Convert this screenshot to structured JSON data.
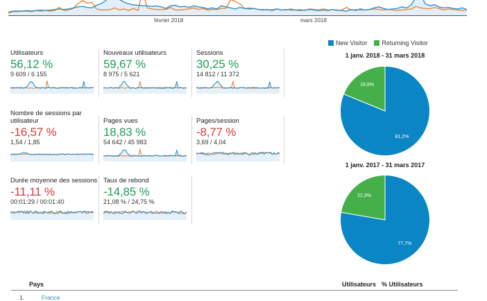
{
  "colors": {
    "new_visitor": "#0a86c4",
    "returning_visitor": "#45b049",
    "series_current": "#2b92c9",
    "series_previous": "#e8873a",
    "positive": "#1e9e58",
    "negative": "#d33b3b"
  },
  "timeline": {
    "x_labels": [
      "février 2018",
      "mars 2018"
    ],
    "series_current": [
      6,
      8,
      8,
      8,
      9,
      8,
      9,
      10,
      9,
      10,
      11,
      12,
      11,
      12,
      14,
      16,
      17,
      15,
      14,
      19,
      22,
      28,
      35,
      40,
      30,
      25,
      22,
      20,
      19,
      18,
      18,
      17,
      18,
      16,
      13,
      18,
      19,
      16,
      17,
      15,
      18,
      16,
      15,
      12,
      14,
      12,
      18,
      16,
      14,
      12,
      15,
      13,
      12,
      13,
      11,
      10,
      11,
      9,
      12,
      10,
      11,
      10,
      10,
      9,
      10,
      11,
      10,
      9,
      10,
      9,
      11,
      10,
      9,
      8,
      11,
      9,
      12,
      10,
      11,
      14,
      16,
      13,
      11,
      12,
      13,
      16,
      14,
      20,
      35,
      40,
      22,
      18,
      20,
      16,
      14,
      15,
      13,
      12,
      14,
      11
    ],
    "series_previous": [
      4,
      7,
      7,
      8,
      8,
      7,
      9,
      8,
      9,
      8,
      9,
      15,
      9,
      10,
      13,
      22,
      28,
      23,
      25,
      12,
      10,
      10,
      11,
      14,
      10,
      12,
      9,
      13,
      9,
      45,
      14,
      12,
      11,
      11,
      11,
      15,
      10,
      10,
      11,
      12,
      14,
      11,
      13,
      10,
      11,
      11,
      13,
      13,
      30,
      26,
      22,
      13,
      14,
      13,
      11,
      11,
      10,
      11,
      12,
      10,
      10,
      12,
      10,
      11,
      9,
      12,
      11,
      10,
      12,
      10,
      11,
      9,
      10,
      15,
      10,
      11,
      10,
      10,
      11,
      12,
      11,
      10,
      11,
      10,
      9,
      10,
      11,
      12,
      17,
      14,
      13,
      12,
      15,
      13,
      10,
      12,
      11,
      10,
      9,
      10
    ]
  },
  "metrics": [
    {
      "title": "Utilisateurs",
      "change": "56,12 %",
      "trend": "pos",
      "ratio": "9 609 / 6 155",
      "spark": "peaks"
    },
    {
      "title": "Nouveaux utilisateurs",
      "change": "59,67 %",
      "trend": "pos",
      "ratio": "8 975 / 5 621",
      "spark": "peaks"
    },
    {
      "title": "Sessions",
      "change": "30,25 %",
      "trend": "pos",
      "ratio": "14 812 / 11 372",
      "spark": "peaks"
    },
    {
      "title": "Nombre de sessions par utilisateur",
      "change": "-16,57 %",
      "trend": "neg",
      "ratio": "1,54 / 1,85",
      "spark": "flat"
    },
    {
      "title": "Pages vues",
      "change": "18,83 %",
      "trend": "pos",
      "ratio": "54 642 / 45 983",
      "spark": "peaks"
    },
    {
      "title": "Pages/session",
      "change": "-8,77 %",
      "trend": "neg",
      "ratio": "3,69 / 4,04",
      "spark": "noisy"
    },
    {
      "title": "Durée moyenne des sessions",
      "change": "-11,11 %",
      "trend": "neg",
      "ratio": "00:01:29 / 00:01:40",
      "spark": "noisy"
    },
    {
      "title": "Taux de rebond",
      "change": "-14,85 %",
      "trend": "pos",
      "ratio": "21,08 % / 24,75 %",
      "spark": "noisy"
    }
  ],
  "legend": {
    "new_visitor": "New Visitor",
    "returning_visitor": "Returning Visitor"
  },
  "chart_data": [
    {
      "type": "pie",
      "title": "1 janv. 2018 - 31 mars 2018",
      "labels": [
        "New Visitor",
        "Returning Visitor"
      ],
      "values": [
        81.2,
        18.8
      ],
      "value_labels": [
        "81,2%",
        "18,8%"
      ]
    },
    {
      "type": "pie",
      "title": "1 janv. 2017 - 31 mars 2017",
      "labels": [
        "New Visitor",
        "Returning Visitor"
      ],
      "values": [
        77.7,
        22.3
      ],
      "value_labels": [
        "77,7%",
        "22,3%"
      ]
    }
  ],
  "table": {
    "headers": {
      "country": "Pays",
      "users": "Utilisateurs",
      "users_pct": "% Utilisateurs"
    },
    "rows": [
      {
        "index": "1.",
        "country": "France"
      }
    ]
  }
}
